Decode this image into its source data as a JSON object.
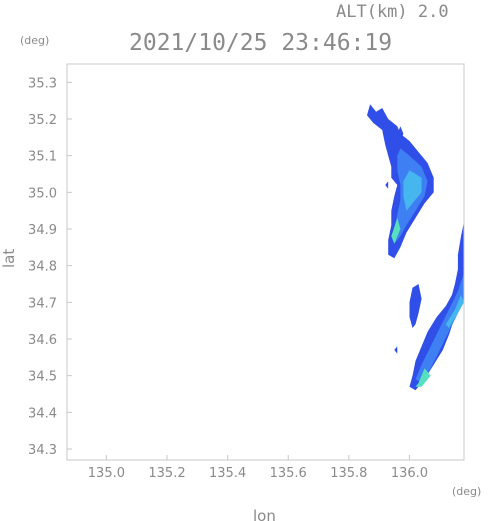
{
  "header": {
    "altitude_text": "ALT(km)  2.0",
    "timestamp": "2021/10/25 23:46:19"
  },
  "chart_data": {
    "type": "heatmap",
    "title": "2021/10/25 23:46:19",
    "xlabel": "lon",
    "ylabel": "lat",
    "x_unit": "(deg)",
    "y_unit": "(deg)",
    "xlim": [
      134.87,
      136.18
    ],
    "ylim": [
      34.27,
      35.35
    ],
    "x_ticks": [
      135.0,
      135.2,
      135.4,
      135.6,
      135.8,
      136.0
    ],
    "x_tick_labels": [
      "135.0",
      "135.2",
      "135.4",
      "135.6",
      "135.8",
      "136.0"
    ],
    "y_ticks": [
      34.3,
      34.4,
      34.5,
      34.6,
      34.7,
      34.8,
      34.9,
      35.0,
      35.1,
      35.2,
      35.3
    ],
    "y_tick_labels": [
      "34.3",
      "34.4",
      "34.5",
      "34.6",
      "34.7",
      "34.8",
      "34.9",
      "35.0",
      "35.1",
      "35.2",
      "35.3"
    ],
    "grid": false,
    "colors": {
      "low": "#2f4fe8",
      "mid": "#3f7ff4",
      "mid_high": "#45b7ee",
      "high": "#57e0c0"
    },
    "regions": [
      {
        "intensity": "low",
        "polygon": [
          [
            135.87,
            35.24
          ],
          [
            135.89,
            35.22
          ],
          [
            135.91,
            35.23
          ],
          [
            135.93,
            35.2
          ],
          [
            135.96,
            35.18
          ],
          [
            135.97,
            35.16
          ],
          [
            136.0,
            35.14
          ],
          [
            136.03,
            35.11
          ],
          [
            136.06,
            35.08
          ],
          [
            136.08,
            35.04
          ],
          [
            136.08,
            35.0
          ],
          [
            136.05,
            34.97
          ],
          [
            136.02,
            34.93
          ],
          [
            135.99,
            34.89
          ],
          [
            135.97,
            34.85
          ],
          [
            135.95,
            34.82
          ],
          [
            135.93,
            34.83
          ],
          [
            135.93,
            34.87
          ],
          [
            135.94,
            34.91
          ],
          [
            135.94,
            34.95
          ],
          [
            135.95,
            34.99
          ],
          [
            135.96,
            35.02
          ],
          [
            135.94,
            35.04
          ],
          [
            135.94,
            35.07
          ],
          [
            135.93,
            35.1
          ],
          [
            135.92,
            35.13
          ],
          [
            135.91,
            35.17
          ],
          [
            135.88,
            35.19
          ],
          [
            135.86,
            35.21
          ]
        ]
      },
      {
        "intensity": "mid",
        "polygon": [
          [
            135.97,
            35.12
          ],
          [
            136.0,
            35.1
          ],
          [
            136.04,
            35.07
          ],
          [
            136.06,
            35.03
          ],
          [
            136.05,
            34.99
          ],
          [
            136.02,
            34.95
          ],
          [
            135.99,
            34.91
          ],
          [
            135.97,
            34.88
          ],
          [
            135.95,
            34.86
          ],
          [
            135.95,
            34.9
          ],
          [
            135.96,
            34.94
          ],
          [
            135.97,
            34.98
          ],
          [
            135.97,
            35.02
          ],
          [
            135.96,
            35.06
          ],
          [
            135.96,
            35.1
          ]
        ]
      },
      {
        "intensity": "mid_high",
        "polygon": [
          [
            136.0,
            35.06
          ],
          [
            136.04,
            35.04
          ],
          [
            136.04,
            35.0
          ],
          [
            136.01,
            34.97
          ],
          [
            135.99,
            34.95
          ],
          [
            135.98,
            34.99
          ],
          [
            135.98,
            35.03
          ]
        ]
      },
      {
        "intensity": "high",
        "polygon": [
          [
            135.96,
            34.93
          ],
          [
            135.97,
            34.9
          ],
          [
            135.95,
            34.86
          ],
          [
            135.94,
            34.88
          ]
        ]
      },
      {
        "intensity": "low",
        "polygon": [
          [
            136.18,
            34.92
          ],
          [
            136.17,
            34.88
          ],
          [
            136.16,
            34.83
          ],
          [
            136.16,
            34.79
          ],
          [
            136.15,
            34.75
          ],
          [
            136.14,
            34.72
          ],
          [
            136.12,
            34.69
          ],
          [
            136.09,
            34.66
          ],
          [
            136.06,
            34.62
          ],
          [
            136.04,
            34.58
          ],
          [
            136.02,
            34.54
          ],
          [
            136.01,
            34.5
          ],
          [
            136.0,
            34.47
          ],
          [
            136.02,
            34.46
          ],
          [
            136.05,
            34.49
          ],
          [
            136.08,
            34.53
          ],
          [
            136.11,
            34.57
          ],
          [
            136.13,
            34.61
          ],
          [
            136.15,
            34.66
          ],
          [
            136.17,
            34.7
          ],
          [
            136.18,
            34.74
          ]
        ]
      },
      {
        "intensity": "mid",
        "polygon": [
          [
            136.18,
            34.78
          ],
          [
            136.16,
            34.73
          ],
          [
            136.13,
            34.68
          ],
          [
            136.1,
            34.63
          ],
          [
            136.07,
            34.58
          ],
          [
            136.04,
            34.53
          ],
          [
            136.02,
            34.49
          ],
          [
            136.04,
            34.48
          ],
          [
            136.07,
            34.52
          ],
          [
            136.1,
            34.57
          ],
          [
            136.13,
            34.62
          ],
          [
            136.16,
            34.67
          ],
          [
            136.18,
            34.71
          ]
        ]
      },
      {
        "intensity": "high",
        "polygon": [
          [
            136.05,
            34.52
          ],
          [
            136.03,
            34.48
          ],
          [
            136.02,
            34.47
          ],
          [
            136.04,
            34.47
          ],
          [
            136.07,
            34.5
          ]
        ]
      },
      {
        "intensity": "mid_high",
        "polygon": [
          [
            136.17,
            34.72
          ],
          [
            136.15,
            34.68
          ],
          [
            136.12,
            34.64
          ],
          [
            136.13,
            34.63
          ],
          [
            136.16,
            34.67
          ],
          [
            136.18,
            34.7
          ]
        ]
      },
      {
        "intensity": "low",
        "polygon": [
          [
            136.03,
            34.75
          ],
          [
            136.04,
            34.71
          ],
          [
            136.03,
            34.67
          ],
          [
            136.02,
            34.64
          ],
          [
            136.01,
            34.63
          ],
          [
            136.0,
            34.66
          ],
          [
            136.0,
            34.7
          ],
          [
            136.01,
            34.74
          ]
        ]
      },
      {
        "intensity": "low",
        "polygon": [
          [
            135.96,
            34.58
          ],
          [
            135.96,
            34.56
          ],
          [
            135.95,
            34.57
          ]
        ]
      },
      {
        "intensity": "low",
        "polygon": [
          [
            135.97,
            35.18
          ],
          [
            135.98,
            35.16
          ],
          [
            135.97,
            35.14
          ],
          [
            135.96,
            35.16
          ]
        ]
      },
      {
        "intensity": "low",
        "polygon": [
          [
            135.93,
            35.03
          ],
          [
            135.93,
            35.01
          ],
          [
            135.92,
            35.02
          ]
        ]
      }
    ]
  }
}
